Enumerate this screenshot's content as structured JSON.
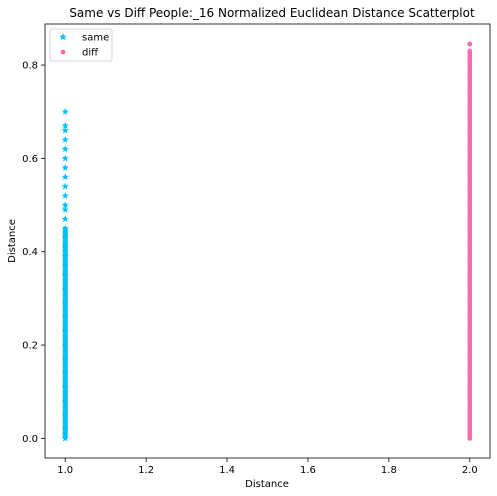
{
  "chart_data": {
    "type": "scatter",
    "title": "Same vs Diff People:_16 Normalized Euclidean Distance Scatterplot",
    "xlabel": "Distance",
    "ylabel": "Distance",
    "xlim": [
      0.95,
      2.05
    ],
    "ylim": [
      -0.042,
      0.888
    ],
    "xticks": [
      "1.0",
      "1.2",
      "1.4",
      "1.6",
      "1.8",
      "2.0"
    ],
    "yticks": [
      "0.0",
      "0.2",
      "0.4",
      "0.6",
      "0.8"
    ],
    "grid": false,
    "legend": "top-left",
    "series": [
      {
        "name": "same",
        "marker": "star",
        "color": "#00bfff",
        "x": 1.0,
        "y": [
          0.0,
          0.02,
          0.05,
          0.08,
          0.11,
          0.14,
          0.17,
          0.2,
          0.23,
          0.26,
          0.29,
          0.32,
          0.35,
          0.37,
          0.39,
          0.41,
          0.43,
          0.45,
          0.47,
          0.49,
          0.5,
          0.52,
          0.54,
          0.56,
          0.58,
          0.6,
          0.62,
          0.64,
          0.66,
          0.67,
          0.7
        ]
      },
      {
        "name": "diff",
        "marker": "circle",
        "color": "#ff69b4",
        "x": 2.0,
        "y": [
          0.0,
          0.03,
          0.06,
          0.1,
          0.14,
          0.18,
          0.22,
          0.26,
          0.3,
          0.34,
          0.38,
          0.42,
          0.46,
          0.5,
          0.54,
          0.58,
          0.62,
          0.66,
          0.7,
          0.74,
          0.78,
          0.81,
          0.83,
          0.845
        ]
      }
    ]
  }
}
